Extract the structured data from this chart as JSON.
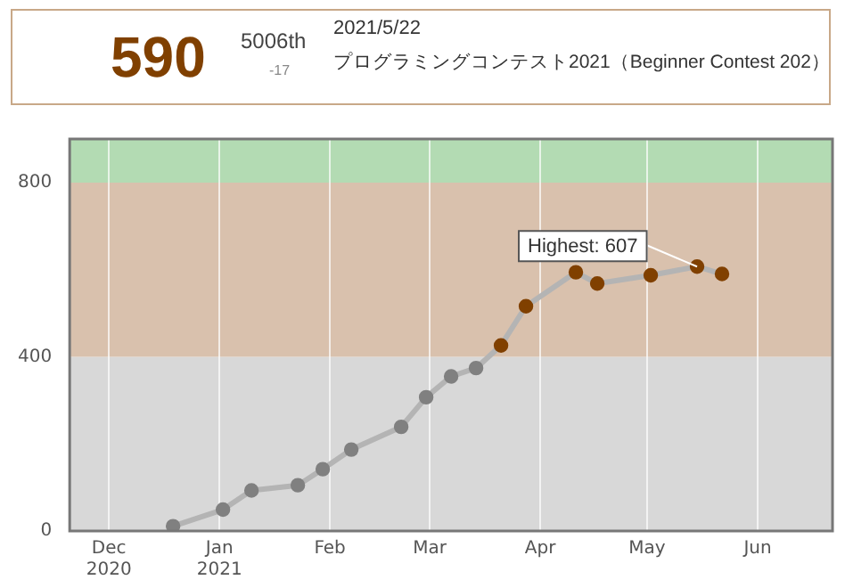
{
  "chart_data": {
    "type": "line",
    "title": "590",
    "subtitle": "プログラミングコンテスト2021（Beginner Contest 202）",
    "annotations": [
      "5006th",
      "-17",
      "2021/5/22",
      {
        "text": "Highest: 607",
        "x": "2021-05-15",
        "y": 607
      }
    ],
    "x": [
      "2020-12-19",
      "2021-01-02",
      "2021-01-10",
      "2021-01-23",
      "2021-01-30",
      "2021-02-07",
      "2021-02-21",
      "2021-02-28",
      "2021-03-07",
      "2021-03-14",
      "2021-03-21",
      "2021-03-28",
      "2021-04-11",
      "2021-04-17",
      "2021-05-02",
      "2021-05-15",
      "2021-05-22"
    ],
    "series": [
      {
        "color": "#b4b4b4",
        "colors": [
          "#808080",
          "#808080",
          "#808080",
          "#808080",
          "#808080",
          "#808080",
          "#808080",
          "#808080",
          "#808080",
          "#808080",
          "#804000",
          "#804000",
          "#804000",
          "#804000",
          "#804000",
          "#804000",
          "#804000"
        ],
        "values": [
          11,
          49,
          93,
          105,
          142,
          187,
          239,
          307,
          355,
          374,
          426,
          516,
          594,
          568,
          587,
          607,
          590
        ]
      }
    ],
    "xlim": [
      "2020-11-20",
      "2021-06-22"
    ],
    "xticks": [
      {
        "value": "2020-12-01",
        "label": "Dec 2020"
      },
      {
        "value": "2021-01-01",
        "label": "Jan 2021"
      },
      {
        "value": "2021-02-01",
        "label": "Feb"
      },
      {
        "value": "2021-03-01",
        "label": "Mar"
      },
      {
        "value": "2021-04-01",
        "label": "Apr"
      },
      {
        "value": "2021-05-01",
        "label": "May"
      },
      {
        "value": "2021-06-01",
        "label": "Jun"
      }
    ],
    "ylim": [
      0,
      900
    ],
    "yticks": [
      0,
      400,
      800
    ],
    "bands": [
      {
        "axis": "y",
        "from": 0,
        "to": 400,
        "color": "#d8d8d8"
      },
      {
        "axis": "y",
        "from": 400,
        "to": 800,
        "color": "#d9c1ad"
      },
      {
        "axis": "y",
        "from": 800,
        "to": 900,
        "color": "#b3dbb3"
      }
    ],
    "grid": "x",
    "legend": false,
    "marker": "circle",
    "line_style": "solid"
  }
}
